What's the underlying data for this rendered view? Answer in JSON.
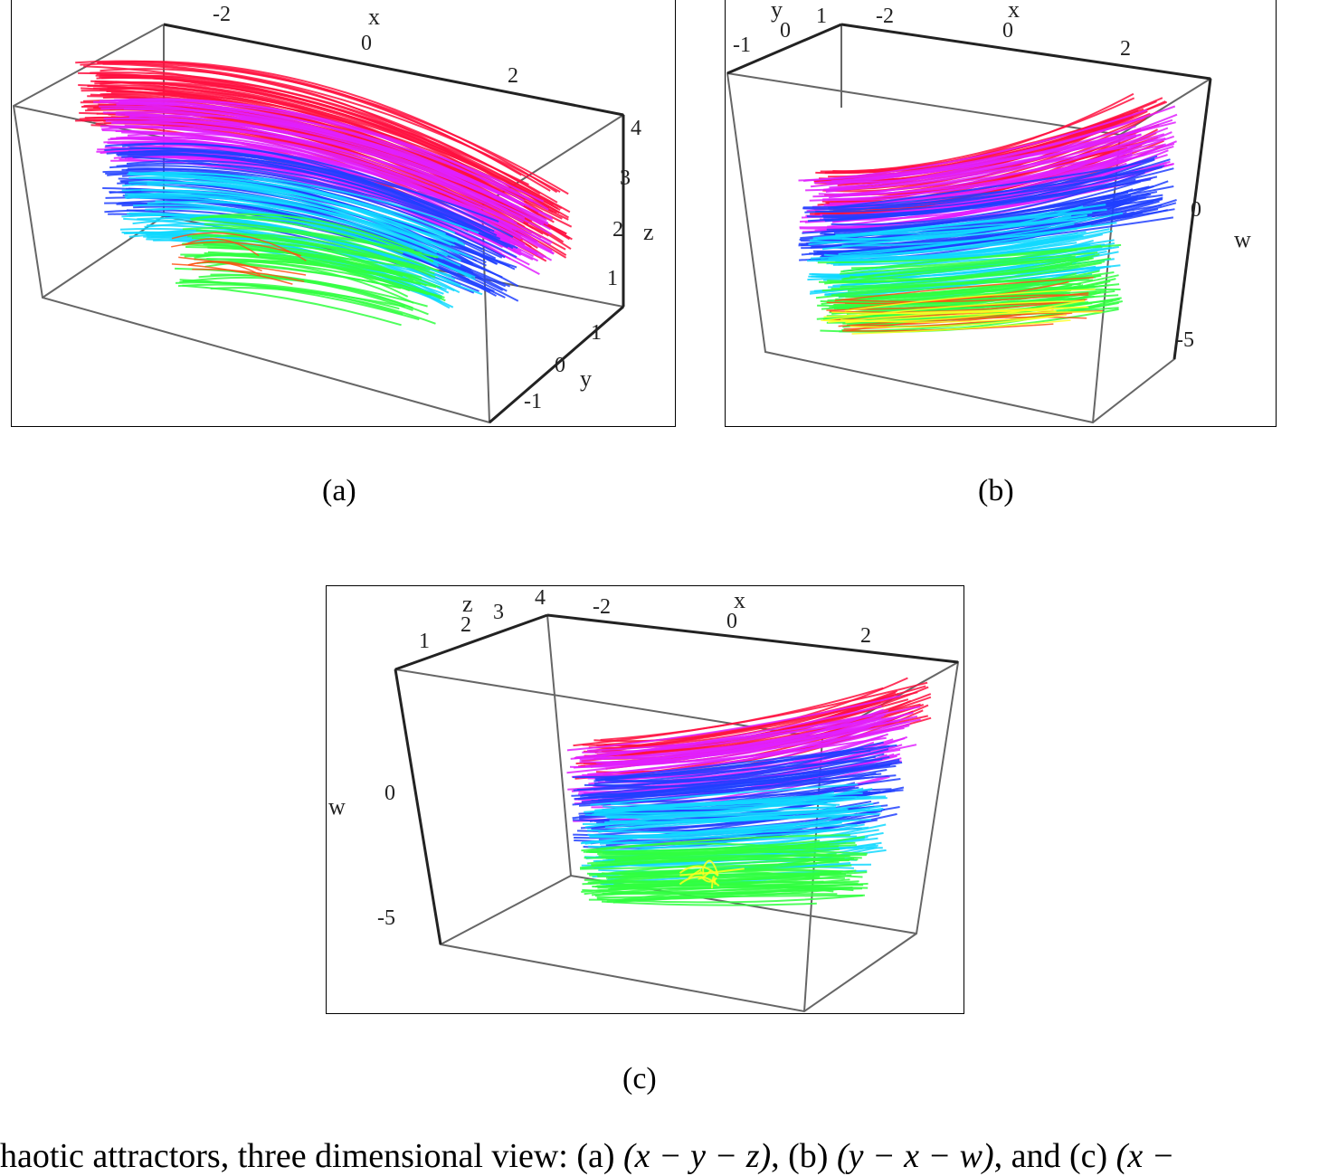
{
  "figures": [
    {
      "id": "a",
      "label": "(a)",
      "axes": {
        "x": {
          "name": "x",
          "ticks": [
            "-2",
            "0",
            "2"
          ]
        },
        "y": {
          "name": "y",
          "ticks": [
            "1",
            "0",
            "-1"
          ]
        },
        "z": {
          "name": "z",
          "ticks": [
            "4",
            "3",
            "2",
            "1"
          ]
        }
      }
    },
    {
      "id": "b",
      "label": "(b)",
      "axes": {
        "y": {
          "name": "y",
          "ticks": [
            "1",
            "0",
            "-1"
          ]
        },
        "x": {
          "name": "x",
          "ticks": [
            "-2",
            "0",
            "2"
          ]
        },
        "w": {
          "name": "w",
          "ticks": [
            "0",
            "-5"
          ]
        }
      }
    },
    {
      "id": "c",
      "label": "(c)",
      "axes": {
        "z": {
          "name": "z",
          "ticks": [
            "1",
            "2",
            "3",
            "4"
          ]
        },
        "x": {
          "name": "x",
          "ticks": [
            "-2",
            "0",
            "2"
          ]
        },
        "w": {
          "name": "w",
          "ticks": [
            "0",
            "-5"
          ]
        }
      }
    }
  ],
  "caption": {
    "text": "haotic attractors, three dimensional view: (a) ",
    "a_expr": "(x − y − z)",
    "mid1": ", (b) ",
    "b_expr": "(y − x − w)",
    "mid2": ", and (c) ",
    "c_expr": "(x −"
  },
  "colors": {
    "red": "#ff1040",
    "magenta": "#e020ff",
    "blue": "#2040ff",
    "cyan": "#10d8ff",
    "green": "#30ff40",
    "yellow": "#ffff20",
    "orange": "#ff5010"
  }
}
